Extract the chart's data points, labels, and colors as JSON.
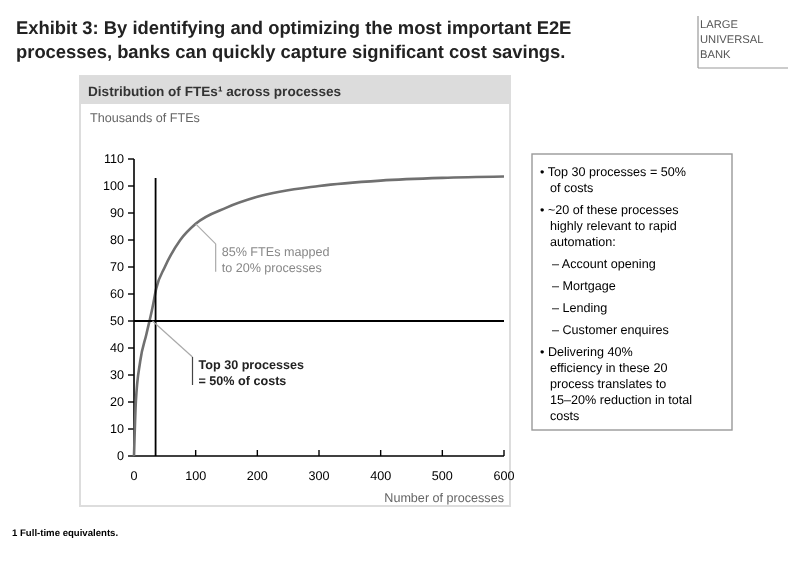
{
  "chart_data": {
    "type": "line",
    "title": "Exhibit 3: By identifying and optimizing the most important E2E processes, banks can quickly capture significant cost savings.",
    "subtitle": "Distribution of FTEs¹ across processes",
    "ylabel": "Thousands of FTEs",
    "xlabel": "Number of processes",
    "x": [
      0,
      3,
      10,
      20,
      30,
      36,
      50,
      75,
      100,
      150,
      200,
      300,
      400,
      500,
      600
    ],
    "series": [
      {
        "color": "#707070",
        "values": [
          0,
          20,
          35,
          45,
          55,
          62,
          70,
          80,
          86,
          92,
          96,
          100,
          102,
          103,
          103.5
        ]
      }
    ],
    "xlim": [
      0,
      600
    ],
    "xticks": [
      0,
      100,
      200,
      300,
      400,
      500,
      600
    ],
    "ylim": [
      0,
      110
    ],
    "yticks": [
      0,
      10,
      20,
      30,
      40,
      50,
      60,
      70,
      80,
      90,
      100,
      110
    ],
    "ref_lines": [
      {
        "axis": "x",
        "value": 35,
        "color": "#000000"
      },
      {
        "axis": "y",
        "value": 50,
        "color": "#000000"
      }
    ],
    "grid": false,
    "line_style": "solid",
    "annotations": [
      "LARGE UNIVERSAL BANK",
      {
        "text": "85% FTEs mapped to 20% processes",
        "x": 100,
        "y": 86
      },
      {
        "text": "Top 30 processes = 50% of costs",
        "x": 30,
        "y": 50
      },
      "• Top 30 processes = 50% of costs",
      "• ~20 of these processes highly relevant to rapid automation:",
      "– Account opening",
      "– Mortgage",
      "– Lending",
      "– Customer enquires",
      "• Delivering 40% efficiency in these 20 process translates to 15–20% reduction in total costs",
      "1 Full-time equivalents."
    ]
  }
}
